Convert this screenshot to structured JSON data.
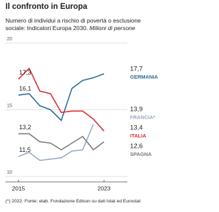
{
  "chart_data": {
    "type": "line",
    "title": "Il confronto in Europa",
    "subtitle": "Numero di individui a rischio di povertà o esclusione sociale: Indicatori Europa 2030.",
    "subtitle_unit": "Milioni di persone",
    "footnote": "(*) 2022. Fonte: elab. Fondazione Edison su dati Istat ed Eurostat",
    "x": [
      2015,
      2016,
      2017,
      2018,
      2019,
      2020,
      2021,
      2022,
      2023
    ],
    "xlim": [
      2015,
      2023
    ],
    "xticks": [
      2015,
      2023
    ],
    "ylim": [
      10,
      20
    ],
    "yticks": [
      10,
      15,
      20
    ],
    "grid": true,
    "series": [
      {
        "name": "GERMANIA",
        "color": "#2b6a9b",
        "values": [
          16.1,
          16.2,
          15.3,
          15.0,
          14.2,
          16.6,
          17.2,
          17.4,
          17.7
        ],
        "value_labels": [
          "16,1",
          null,
          null,
          null,
          null,
          null,
          null,
          null,
          "17,7"
        ]
      },
      {
        "name": "FRANCIA*",
        "color": "#94abc7",
        "values": [
          11.5,
          11.8,
          11.2,
          11.3,
          11.4,
          11.9,
          12.0,
          13.9,
          null
        ],
        "value_labels": [
          "11,5",
          null,
          null,
          null,
          null,
          null,
          null,
          "13,9",
          null
        ]
      },
      {
        "name": "ITALIA",
        "color": "#d92b2f",
        "values": [
          17.3,
          18.1,
          16.4,
          16.2,
          14.8,
          14.9,
          14.9,
          14.3,
          13.4
        ],
        "value_labels": [
          "17,3",
          null,
          null,
          null,
          null,
          null,
          null,
          null,
          "13,4"
        ]
      },
      {
        "name": "SPAGNA",
        "color": "#7a7a7a",
        "values": [
          13.2,
          13.2,
          12.6,
          12.5,
          12.0,
          12.5,
          13.0,
          12.0,
          12.6
        ],
        "value_labels": [
          "13,2",
          null,
          null,
          null,
          null,
          null,
          null,
          null,
          "12,6"
        ]
      }
    ]
  }
}
